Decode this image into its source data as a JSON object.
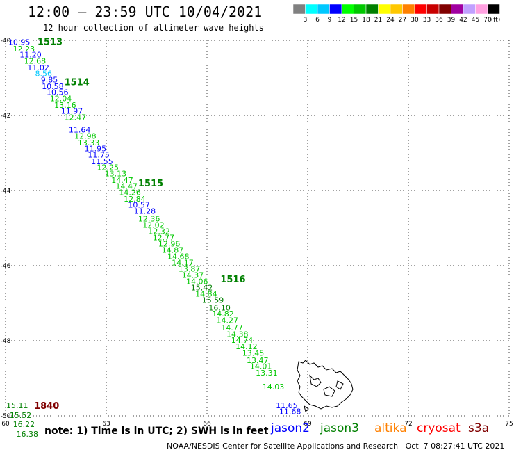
{
  "header": {
    "title": "12:00 – 23:59 UTC 10/04/2021",
    "subtitle": "12 hour collection of altimeter wave heights"
  },
  "colorbar": {
    "labels": [
      "3",
      "6",
      "9",
      "12",
      "15",
      "18",
      "21",
      "24",
      "27",
      "30",
      "33",
      "36",
      "39",
      "42",
      "45",
      "70"
    ],
    "unit": "(ft)",
    "colors": [
      "#808080",
      "#00ffff",
      "#00c8ff",
      "#0000ff",
      "#00ff00",
      "#00c800",
      "#008000",
      "#ffff00",
      "#ffc800",
      "#ff8000",
      "#ff0000",
      "#c80000",
      "#800000",
      "#a000a0",
      "#c0a0ff",
      "#ffa0e0",
      "#000000"
    ]
  },
  "footer": {
    "note": "note: 1) Time is in UTC; 2) SWH is in feet",
    "credit": "NOAA/NESDIS Center for Satellite Applications and Research   Oct  7 08:27:41 UTC 2021"
  },
  "satellites": [
    {
      "name": "jason2",
      "color": "#0000ff"
    },
    {
      "name": "jason3",
      "color": "#008000"
    },
    {
      "name": "altika",
      "color": "#ff8000"
    },
    {
      "name": "cryosat",
      "color": "#ff0000"
    },
    {
      "name": "s3a",
      "color": "#800000"
    }
  ],
  "chart_data": {
    "type": "scatter",
    "title": "12:00 – 23:59 UTC 10/04/2021",
    "xlim": [
      60,
      75
    ],
    "ylim": [
      -50,
      -40
    ],
    "xticks": [
      "60",
      "63",
      "66",
      "69",
      "72",
      "75"
    ],
    "yticks": [
      "-40",
      "-42",
      "-44",
      "-46",
      "-48",
      "-50"
    ],
    "grid": true,
    "time_labels": [
      {
        "text": "1513",
        "lon": 60.95,
        "lat": -40.03,
        "color": "#008000"
      },
      {
        "text": "1514",
        "lon": 61.75,
        "lat": -41.1,
        "color": "#008000"
      },
      {
        "text": "1515",
        "lon": 63.95,
        "lat": -43.8,
        "color": "#008000"
      },
      {
        "text": "1516",
        "lon": 66.4,
        "lat": -46.35,
        "color": "#008000"
      },
      {
        "text": "1840",
        "lon": 60.85,
        "lat": -49.72,
        "color": "#800000"
      }
    ],
    "points": [
      {
        "v": "10.95",
        "lon": 60.08,
        "lat": -40.05,
        "color": "#0000ff"
      },
      {
        "v": "12.23",
        "lon": 60.22,
        "lat": -40.22,
        "color": "#00c800"
      },
      {
        "v": "11.20",
        "lon": 60.42,
        "lat": -40.38,
        "color": "#0000ff"
      },
      {
        "v": "12.68",
        "lon": 60.55,
        "lat": -40.55,
        "color": "#00c800"
      },
      {
        "v": "11.02",
        "lon": 60.65,
        "lat": -40.72,
        "color": "#0000ff"
      },
      {
        "v": "8.56",
        "lon": 60.88,
        "lat": -40.88,
        "color": "#00c8ff"
      },
      {
        "v": "9.85",
        "lon": 61.05,
        "lat": -41.05,
        "color": "#0000ff"
      },
      {
        "v": "10.58",
        "lon": 61.08,
        "lat": -41.22,
        "color": "#0000ff"
      },
      {
        "v": "10.56",
        "lon": 61.22,
        "lat": -41.38,
        "color": "#0000ff"
      },
      {
        "v": "12.04",
        "lon": 61.32,
        "lat": -41.55,
        "color": "#00c800"
      },
      {
        "v": "13.16",
        "lon": 61.45,
        "lat": -41.72,
        "color": "#00c800"
      },
      {
        "v": "11.97",
        "lon": 61.65,
        "lat": -41.88,
        "color": "#0000ff"
      },
      {
        "v": "12.47",
        "lon": 61.75,
        "lat": -42.05,
        "color": "#00c800"
      },
      {
        "v": "11.64",
        "lon": 61.88,
        "lat": -42.38,
        "color": "#0000ff"
      },
      {
        "v": "12.98",
        "lon": 62.05,
        "lat": -42.55,
        "color": "#00c800"
      },
      {
        "v": "13.33",
        "lon": 62.15,
        "lat": -42.72,
        "color": "#00c800"
      },
      {
        "v": "11.95",
        "lon": 62.35,
        "lat": -42.88,
        "color": "#0000ff"
      },
      {
        "v": "11.75",
        "lon": 62.45,
        "lat": -43.05,
        "color": "#0000ff"
      },
      {
        "v": "11.55",
        "lon": 62.55,
        "lat": -43.22,
        "color": "#0000ff"
      },
      {
        "v": "12.25",
        "lon": 62.72,
        "lat": -43.38,
        "color": "#00c800"
      },
      {
        "v": "13.13",
        "lon": 62.95,
        "lat": -43.55,
        "color": "#00c800"
      },
      {
        "v": "14.47",
        "lon": 63.15,
        "lat": -43.72,
        "color": "#00c800"
      },
      {
        "v": "14.47",
        "lon": 63.28,
        "lat": -43.88,
        "color": "#00c800"
      },
      {
        "v": "14.26",
        "lon": 63.38,
        "lat": -44.05,
        "color": "#00c800"
      },
      {
        "v": "12.84",
        "lon": 63.52,
        "lat": -44.22,
        "color": "#00c800"
      },
      {
        "v": "10.57",
        "lon": 63.65,
        "lat": -44.38,
        "color": "#0000ff"
      },
      {
        "v": "11.28",
        "lon": 63.82,
        "lat": -44.55,
        "color": "#0000ff"
      },
      {
        "v": "12.36",
        "lon": 63.95,
        "lat": -44.75,
        "color": "#00c800"
      },
      {
        "v": "12.02",
        "lon": 64.08,
        "lat": -44.92,
        "color": "#00c800"
      },
      {
        "v": "12.32",
        "lon": 64.25,
        "lat": -45.08,
        "color": "#00c800"
      },
      {
        "v": "12.77",
        "lon": 64.38,
        "lat": -45.25,
        "color": "#00c800"
      },
      {
        "v": "12.96",
        "lon": 64.55,
        "lat": -45.42,
        "color": "#00c800"
      },
      {
        "v": "14.87",
        "lon": 64.65,
        "lat": -45.58,
        "color": "#00c800"
      },
      {
        "v": "14.68",
        "lon": 64.82,
        "lat": -45.75,
        "color": "#00c800"
      },
      {
        "v": "14.17",
        "lon": 64.95,
        "lat": -45.92,
        "color": "#00c800"
      },
      {
        "v": "13.87",
        "lon": 65.15,
        "lat": -46.08,
        "color": "#00c800"
      },
      {
        "v": "14.37",
        "lon": 65.25,
        "lat": -46.25,
        "color": "#00c800"
      },
      {
        "v": "14.06",
        "lon": 65.38,
        "lat": -46.42,
        "color": "#00c800"
      },
      {
        "v": "15.42",
        "lon": 65.52,
        "lat": -46.58,
        "color": "#008000"
      },
      {
        "v": "14.84",
        "lon": 65.65,
        "lat": -46.75,
        "color": "#00c800"
      },
      {
        "v": "15.59",
        "lon": 65.85,
        "lat": -46.92,
        "color": "#008000"
      },
      {
        "v": "16.10",
        "lon": 66.05,
        "lat": -47.12,
        "color": "#008000"
      },
      {
        "v": "14.82",
        "lon": 66.15,
        "lat": -47.28,
        "color": "#00c800"
      },
      {
        "v": "14.27",
        "lon": 66.28,
        "lat": -47.45,
        "color": "#00c800"
      },
      {
        "v": "14.77",
        "lon": 66.42,
        "lat": -47.65,
        "color": "#00c800"
      },
      {
        "v": "14.38",
        "lon": 66.58,
        "lat": -47.82,
        "color": "#00c800"
      },
      {
        "v": "14.74",
        "lon": 66.72,
        "lat": -47.98,
        "color": "#00c800"
      },
      {
        "v": "14.12",
        "lon": 66.85,
        "lat": -48.15,
        "color": "#00c800"
      },
      {
        "v": "13.45",
        "lon": 67.05,
        "lat": -48.32,
        "color": "#00c800"
      },
      {
        "v": "13.47",
        "lon": 67.18,
        "lat": -48.52,
        "color": "#00c800"
      },
      {
        "v": "14.01",
        "lon": 67.28,
        "lat": -48.68,
        "color": "#00c800"
      },
      {
        "v": "13.31",
        "lon": 67.45,
        "lat": -48.85,
        "color": "#00c800"
      },
      {
        "v": "14.03",
        "lon": 67.65,
        "lat": -49.22,
        "color": "#00c800"
      },
      {
        "v": "11.65",
        "lon": 68.05,
        "lat": -49.72,
        "color": "#0000ff"
      },
      {
        "v": "11.68",
        "lon": 68.15,
        "lat": -49.88,
        "color": "#0000ff"
      },
      {
        "v": "15.11",
        "lon": 60.02,
        "lat": -49.72,
        "color": "#008000"
      },
      {
        "v": "15.52",
        "lon": 60.12,
        "lat": -49.98,
        "color": "#008000"
      },
      {
        "v": "16.22",
        "lon": 60.22,
        "lat": -50.22,
        "color": "#008000"
      },
      {
        "v": "16.38",
        "lon": 60.32,
        "lat": -50.48,
        "color": "#008000"
      }
    ]
  }
}
